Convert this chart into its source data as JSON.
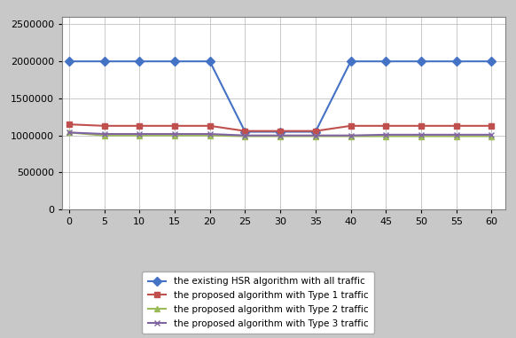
{
  "x": [
    0,
    5,
    10,
    15,
    20,
    25,
    30,
    35,
    40,
    45,
    50,
    55,
    60
  ],
  "series": [
    {
      "label": "the existing HSR algorithm with all traffic",
      "color": "#4472C4",
      "marker": "D",
      "markersize": 5,
      "linewidth": 1.5,
      "values": [
        2000000,
        2000000,
        2000000,
        2000000,
        2000000,
        1050000,
        1050000,
        1050000,
        2000000,
        2000000,
        2000000,
        2000000,
        2000000
      ]
    },
    {
      "label": "the proposed algorithm with Type 1 traffic",
      "color": "#C0504D",
      "marker": "s",
      "markersize": 5,
      "linewidth": 1.5,
      "values": [
        1150000,
        1130000,
        1130000,
        1130000,
        1130000,
        1060000,
        1060000,
        1060000,
        1130000,
        1130000,
        1130000,
        1130000,
        1130000
      ]
    },
    {
      "label": "the proposed algorithm with Type 2 traffic",
      "color": "#9BBB59",
      "marker": "^",
      "markersize": 5,
      "linewidth": 1.5,
      "values": [
        1040000,
        1000000,
        1000000,
        1000000,
        1000000,
        990000,
        990000,
        990000,
        990000,
        990000,
        990000,
        990000,
        990000
      ]
    },
    {
      "label": "the proposed algorithm with Type 3 traffic",
      "color": "#8064A2",
      "marker": "x",
      "markersize": 5,
      "linewidth": 1.5,
      "values": [
        1040000,
        1020000,
        1020000,
        1020000,
        1020000,
        1000000,
        1000000,
        1000000,
        1000000,
        1010000,
        1010000,
        1010000,
        1010000
      ]
    }
  ],
  "ylim": [
    0,
    2600000
  ],
  "yticks": [
    0,
    500000,
    1000000,
    1500000,
    2000000,
    2500000
  ],
  "xlim": [
    -1,
    62
  ],
  "xticks": [
    0,
    5,
    10,
    15,
    20,
    25,
    30,
    35,
    40,
    45,
    50,
    55,
    60
  ],
  "grid": true,
  "legend_fontsize": 7.5,
  "tick_fontsize": 8,
  "plot_bgcolor": "#FFFFFF",
  "figure_facecolor": "#C8C8C8"
}
